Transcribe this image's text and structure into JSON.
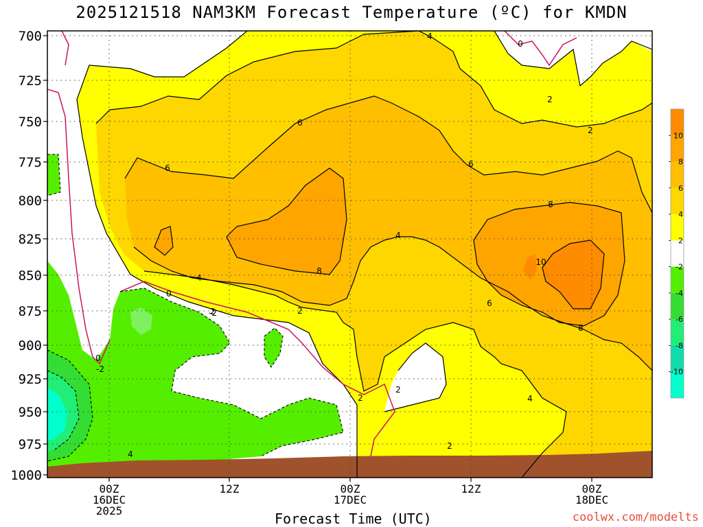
{
  "title": "2025121518 NAM3KM Forecast Temperature (ºC) for KMDN",
  "credit": "coolwx.com/modelts",
  "colors": {
    "ground": "#a0522d",
    "white": "#ffffff",
    "yellow_2_4": "#ffff00",
    "gold_4_6": "#ffd700",
    "orange_6_8": "#ffbf00",
    "deep_8_10": "#ffa500",
    "max_10": "#ff8c00",
    "green_m2": "#55ee00",
    "green_m4": "#33dd33",
    "green_m6": "#22ee77",
    "green_m8": "#11ddaa",
    "cyan_m10": "#00ffcc",
    "zero_line": "#cc1166",
    "contour": "#000000"
  },
  "chart_data": {
    "type": "heatmap",
    "title": "2025121518 NAM3KM Forecast Temperature (ºC) for KMDN",
    "xlabel": "Forecast Time (UTC)",
    "ylabel": "",
    "y_scale": "pressure (inverted)",
    "ylim": [
      1000,
      700
    ],
    "y_ticks": [
      "700",
      "725",
      "750",
      "775",
      "800",
      "825",
      "850",
      "875",
      "900",
      "925",
      "950",
      "975",
      "1000"
    ],
    "x_ticks": [
      {
        "line1": "00Z",
        "line2": "16DEC",
        "line3": "2025"
      },
      {
        "line1": "12Z",
        "line2": "",
        "line3": ""
      },
      {
        "line1": "00Z",
        "line2": "17DEC",
        "line3": ""
      },
      {
        "line1": "12Z",
        "line2": "",
        "line3": ""
      },
      {
        "line1": "00Z",
        "line2": "18DEC",
        "line3": ""
      }
    ],
    "grid": true,
    "colorbar": {
      "levels": [
        -12,
        -10,
        -8,
        -6,
        -4,
        -2,
        2,
        4,
        6,
        8,
        10,
        12
      ],
      "labels": [
        "-10",
        "-8",
        "-6",
        "-4",
        "-2",
        "2",
        "4",
        "6",
        "8",
        "10"
      ],
      "placement": "right"
    },
    "contour_labels": [
      "0",
      "0",
      "2",
      "2",
      "2",
      "2",
      "2",
      "-2",
      "-2",
      "4",
      "4",
      "4",
      "4",
      "4",
      "6",
      "6",
      "6",
      "6",
      "8",
      "8",
      "8",
      "10",
      "0",
      "-2",
      "2",
      "2"
    ],
    "annotations": [
      "maximum ~10ºC near 840 hPa around 18DEC 00Z",
      "surface (brown) near 990 hPa"
    ]
  }
}
